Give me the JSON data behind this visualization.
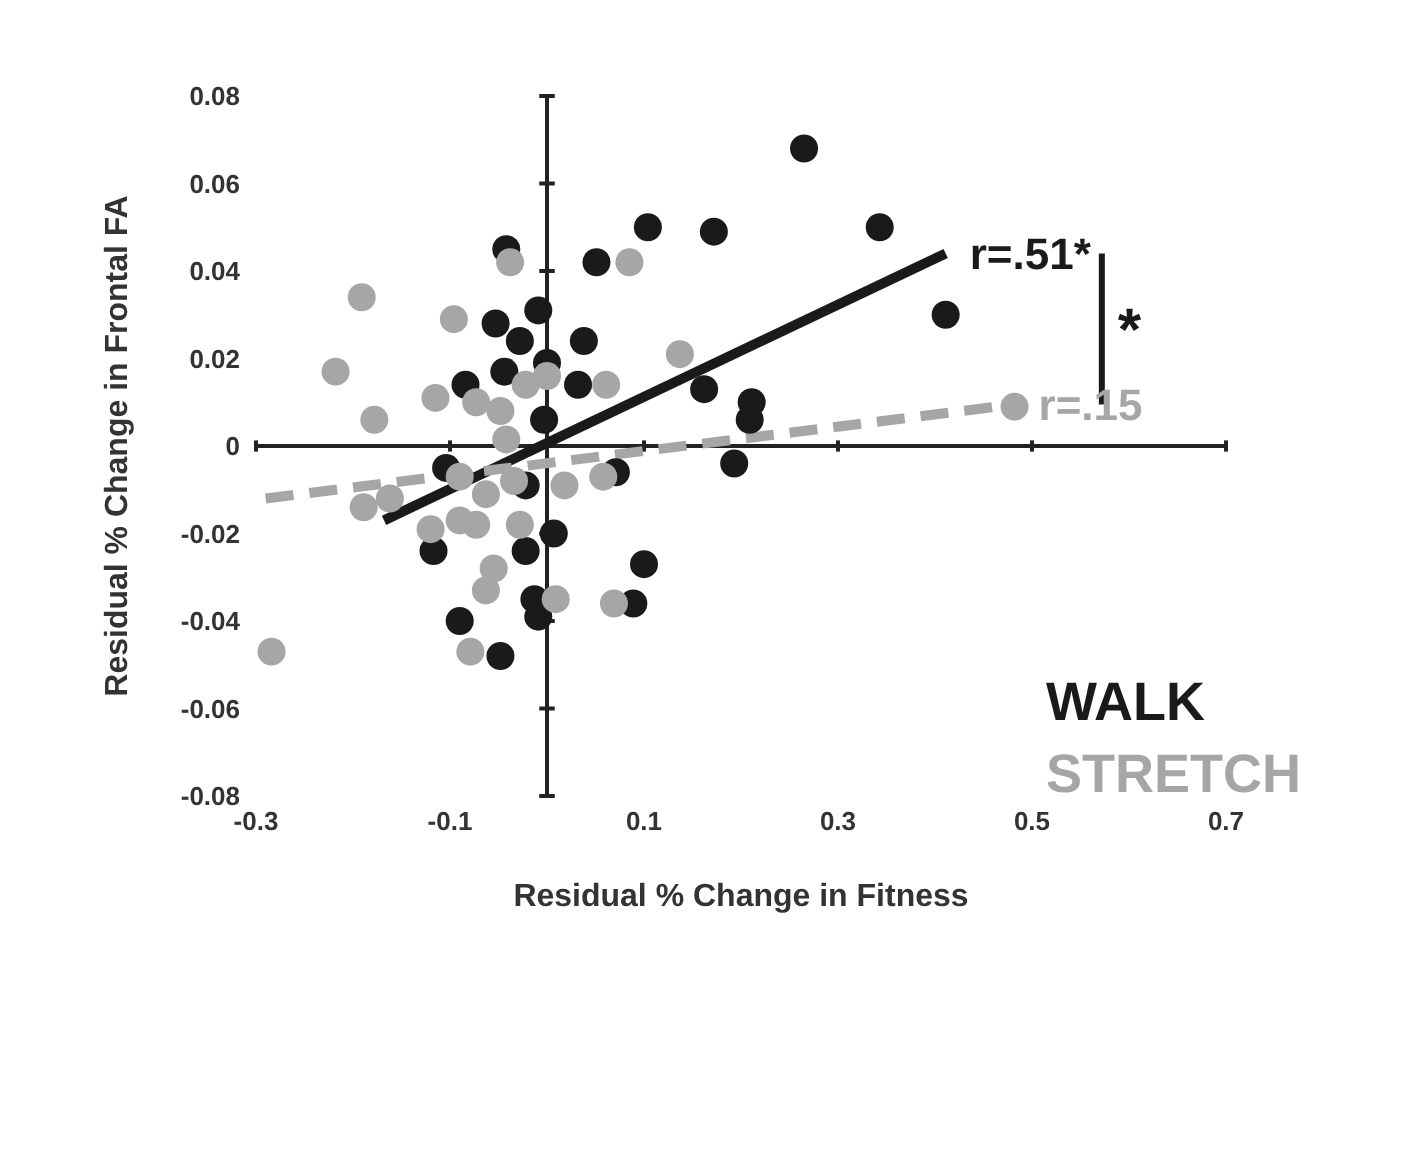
{
  "chart_data": {
    "type": "scatter",
    "xlabel": "Residual % Change in Fitness",
    "ylabel": "Residual % Change in Frontal FA",
    "xlim": [
      -0.3,
      0.7
    ],
    "xticks": [
      -0.3,
      -0.1,
      0.1,
      0.3,
      0.5,
      0.7
    ],
    "ylim": [
      -0.08,
      0.08
    ],
    "yticks": [
      -0.08,
      -0.06,
      -0.04,
      -0.02,
      0,
      0.02,
      0.04,
      0.06,
      0.08
    ],
    "legend": "bottom right",
    "marker": "circle",
    "series": [
      {
        "name": "WALK",
        "color": "#1a1a1a",
        "x": [
          0.265,
          0.343,
          0.411,
          0.104,
          0.172,
          -0.042,
          0.051,
          -0.009,
          -0.053,
          -0.028,
          0.038,
          -0.044,
          -0.084,
          0,
          0.032,
          0.162,
          0.211,
          0.209,
          -0.003,
          0.193,
          -0.104,
          0.071,
          -0.022,
          0.007,
          -0.117,
          -0.022,
          0.1,
          0.089,
          -0.013,
          -0.009,
          -0.09,
          -0.048
        ],
        "values": [
          0.068,
          0.05,
          0.03,
          0.05,
          0.049,
          0.045,
          0.042,
          0.031,
          0.028,
          0.024,
          0.024,
          0.017,
          0.014,
          0.019,
          0.014,
          0.013,
          0.01,
          0.006,
          0.006,
          -0.004,
          -0.005,
          -0.006,
          -0.009,
          -0.02,
          -0.024,
          -0.024,
          -0.027,
          -0.036,
          -0.035,
          -0.039,
          -0.04,
          -0.048
        ]
      },
      {
        "name": "STRETCH",
        "color": "#a6a6a6",
        "x": [
          -0.191,
          -0.218,
          -0.178,
          -0.096,
          -0.115,
          -0.038,
          0.085,
          0.137,
          -0.073,
          -0.048,
          -0.022,
          0,
          0.061,
          -0.042,
          -0.189,
          -0.162,
          -0.09,
          -0.063,
          -0.034,
          0.018,
          0.058,
          -0.12,
          -0.09,
          -0.073,
          -0.028,
          -0.055,
          -0.063,
          0.009,
          0.069,
          -0.079,
          -0.284,
          0.482
        ],
        "values": [
          0.034,
          0.017,
          0.006,
          0.029,
          0.011,
          0.042,
          0.042,
          0.021,
          0.01,
          0.008,
          0.014,
          0.016,
          0.014,
          0.0015,
          -0.014,
          -0.012,
          -0.007,
          -0.011,
          -0.008,
          -0.009,
          -0.007,
          -0.019,
          -0.017,
          -0.018,
          -0.018,
          -0.028,
          -0.033,
          -0.035,
          -0.036,
          -0.047,
          -0.047,
          0.009
        ]
      },
      {
        "type": "line",
        "color": "#1a1a1a",
        "line_style": "solid",
        "marker": "none",
        "x": [
          -0.168,
          0.411
        ],
        "values": [
          -0.017,
          0.044
        ]
      },
      {
        "type": "line",
        "color": "#a6a6a6",
        "line_style": "dashed",
        "marker": "none",
        "x": [
          -0.29,
          0.482
        ],
        "values": [
          -0.012,
          0.0095
        ]
      }
    ],
    "annotations": [
      {
        "text": "r=.51*",
        "x": 0.411,
        "y": 0.044
      },
      {
        "text": "r=.15",
        "x": 0.482,
        "y": 0.0095
      },
      "*"
    ]
  }
}
